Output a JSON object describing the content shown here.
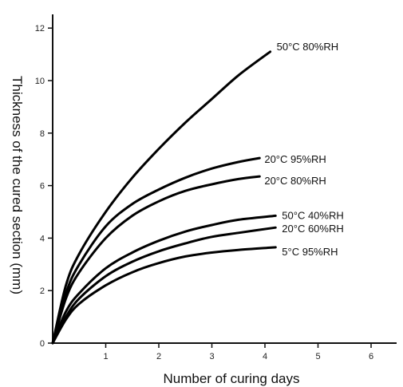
{
  "chart_data": {
    "type": "line",
    "xlabel": "Number of curing days",
    "ylabel": "Thickness of the cured section (mm)",
    "xlim": [
      0,
      6.5
    ],
    "ylim": [
      0,
      12.5
    ],
    "xticks": [
      "1",
      "2",
      "3",
      "4",
      "5",
      "6"
    ],
    "yticks": [
      "0",
      "2",
      "4",
      "6",
      "8",
      "10",
      "12"
    ],
    "grid": false,
    "series": [
      {
        "name": "50°C  80%RH",
        "x": [
          0,
          0.25,
          0.5,
          1,
          1.5,
          2,
          2.5,
          3,
          3.5,
          4.1
        ],
        "y": [
          0,
          2.2,
          3.4,
          5.0,
          6.3,
          7.4,
          8.4,
          9.3,
          10.2,
          11.1
        ]
      },
      {
        "name": "20°C  95%RH",
        "x": [
          0,
          0.25,
          0.5,
          1,
          1.5,
          2,
          2.5,
          3,
          3.5,
          3.9
        ],
        "y": [
          0,
          1.9,
          3.0,
          4.45,
          5.3,
          5.85,
          6.3,
          6.65,
          6.9,
          7.05
        ]
      },
      {
        "name": "20°C  80%RH",
        "x": [
          0,
          0.25,
          0.5,
          1,
          1.5,
          2,
          2.5,
          3,
          3.5,
          3.9
        ],
        "y": [
          0,
          1.7,
          2.7,
          4.0,
          4.85,
          5.4,
          5.8,
          6.05,
          6.25,
          6.35
        ]
      },
      {
        "name": "50°C  40%RH",
        "x": [
          0,
          0.25,
          0.5,
          1,
          1.5,
          2,
          2.5,
          3,
          3.5,
          4.2
        ],
        "y": [
          0,
          1.2,
          1.9,
          2.85,
          3.45,
          3.9,
          4.25,
          4.5,
          4.7,
          4.85
        ]
      },
      {
        "name": "20°C  60%RH",
        "x": [
          0,
          0.25,
          0.5,
          1,
          1.5,
          2,
          2.5,
          3,
          3.5,
          4.2
        ],
        "y": [
          0,
          1.0,
          1.7,
          2.55,
          3.1,
          3.5,
          3.8,
          4.05,
          4.2,
          4.4
        ]
      },
      {
        "name": "5°C  95%RH",
        "x": [
          0,
          0.25,
          0.5,
          1,
          1.5,
          2,
          2.5,
          3,
          3.5,
          4.2
        ],
        "y": [
          0,
          0.9,
          1.5,
          2.2,
          2.7,
          3.05,
          3.3,
          3.45,
          3.55,
          3.65
        ]
      }
    ]
  }
}
